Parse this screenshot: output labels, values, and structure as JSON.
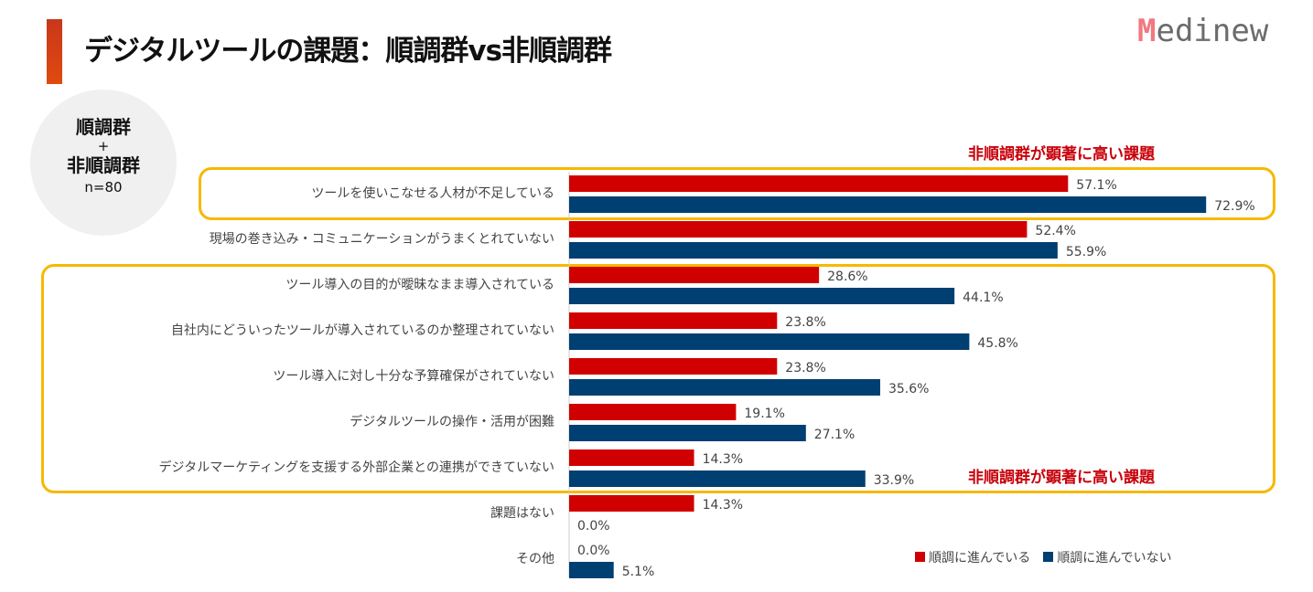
{
  "header": {
    "title": "デジタルツールの課題：順調群vs非順調群",
    "logo": "Medinew"
  },
  "sample": {
    "group1": "順調群",
    "plus": "+",
    "group2": "非順調群",
    "n": "n=80"
  },
  "notes": {
    "top": "非順調群が顕著に高い課題",
    "bottom": "非順調群が顕著に高い課題"
  },
  "colors": {
    "on_track": "#d10000",
    "not_on_track": "#003f72",
    "highlight": "#f7b800"
  },
  "chart_data": {
    "type": "bar",
    "orientation": "horizontal",
    "categories": [
      "ツールを使いこなせる人材が不足している",
      "現場の巻き込み・コミュニケーションがうまくとれていない",
      "ツール導入の目的が曖昧なまま導入されている",
      "自社内にどういったツールが導入されているのか整理されていない",
      "ツール導入に対し十分な予算確保がされていない",
      "デジタルツールの操作・活用が困難",
      "デジタルマーケティングを支援する外部企業との連携ができていない",
      "課題はない",
      "その他"
    ],
    "series": [
      {
        "name": "順調に進んでいる",
        "values": [
          57.1,
          52.4,
          28.6,
          23.8,
          23.8,
          19.1,
          14.3,
          14.3,
          0.0
        ]
      },
      {
        "name": "順調に進んでいない",
        "values": [
          72.9,
          55.9,
          44.1,
          45.8,
          35.6,
          27.1,
          33.9,
          0.0,
          5.1
        ]
      }
    ],
    "unit": "%",
    "legend": "bottom-right"
  }
}
